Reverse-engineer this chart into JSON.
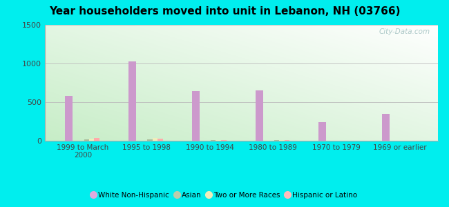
{
  "title": "Year householders moved into unit in Lebanon, NH (03766)",
  "categories": [
    "1999 to March\n2000",
    "1995 to 1998",
    "1990 to 1994",
    "1980 to 1989",
    "1970 to 1979",
    "1969 or earlier"
  ],
  "series": {
    "White Non-Hispanic": [
      580,
      1025,
      645,
      655,
      245,
      350
    ],
    "Asian": [
      22,
      22,
      8,
      8,
      0,
      0
    ],
    "Two or More Races": [
      25,
      35,
      8,
      8,
      0,
      0
    ],
    "Hispanic or Latino": [
      35,
      30,
      8,
      8,
      0,
      0
    ]
  },
  "colors": {
    "White Non-Hispanic": "#cc99cc",
    "Asian": "#aabb99",
    "Two or More Races": "#eeeebb",
    "Hispanic or Latino": "#ffaaaa"
  },
  "legend_colors": {
    "White Non-Hispanic": "#ddaadd",
    "Asian": "#bbccaa",
    "Two or More Races": "#eeeebb",
    "Hispanic or Latino": "#ffbbbb"
  },
  "ylim": [
    0,
    1500
  ],
  "yticks": [
    0,
    500,
    1000,
    1500
  ],
  "background_outer": "#00eeee",
  "background_inner_left": "#c8eec8",
  "background_inner_right": "#e8fff8",
  "grid_color": "#bbbbbb",
  "watermark": "City-Data.com",
  "bar_width": 0.12,
  "title_fontsize": 11
}
